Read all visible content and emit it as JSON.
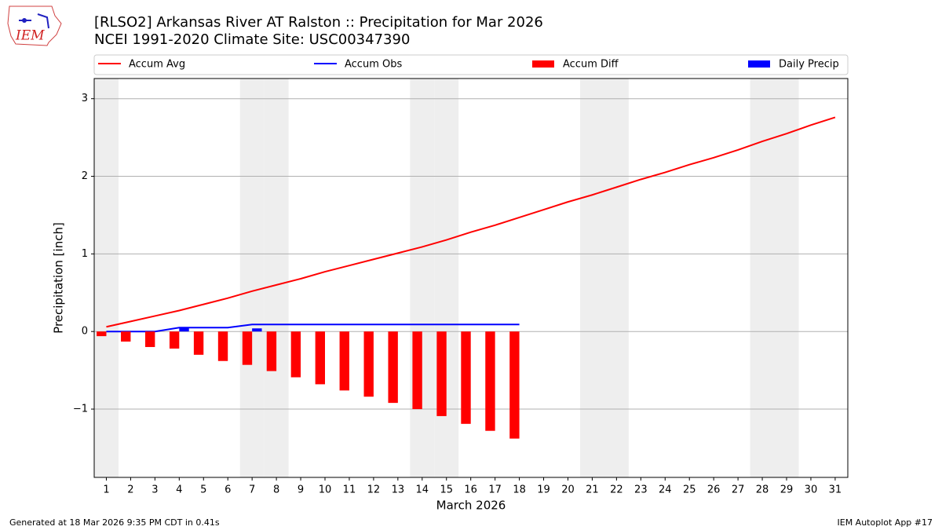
{
  "chart_data": {
    "type": "combo",
    "title": "[RLSO2] Arkansas River  AT Ralston :: Precipitation for Mar 2026",
    "subtitle": "NCEI 1991-2020 Climate Site: USC00347390",
    "logo_text": "IEM",
    "xlabel": "March 2026",
    "ylabel": "Precipitation [inch]",
    "footer_left": "Generated at 18 Mar 2026 9:35 PM CDT in 0.41s",
    "footer_right": "IEM Autoplot App #17",
    "x": [
      1,
      2,
      3,
      4,
      5,
      6,
      7,
      8,
      9,
      10,
      11,
      12,
      13,
      14,
      15,
      16,
      17,
      18,
      19,
      20,
      21,
      22,
      23,
      24,
      25,
      26,
      27,
      28,
      29,
      30,
      31
    ],
    "xlim": [
      0.5,
      31.52
    ],
    "xticks": [
      1,
      2,
      3,
      4,
      5,
      6,
      7,
      8,
      9,
      10,
      11,
      12,
      13,
      14,
      15,
      16,
      17,
      18,
      19,
      20,
      21,
      22,
      23,
      24,
      25,
      26,
      27,
      28,
      29,
      30,
      31
    ],
    "ylim": [
      -1.88,
      3.26
    ],
    "yticks": [
      {
        "value": -1,
        "label": "−1"
      },
      0,
      1,
      2,
      3
    ],
    "grid": true,
    "shaded_days": [
      1,
      7,
      8,
      14,
      15,
      21,
      22,
      28,
      29
    ],
    "series": [
      {
        "name": "Accum Avg",
        "type": "line",
        "color": "#ff0000",
        "values": [
          0.06,
          0.13,
          0.2,
          0.27,
          0.35,
          0.43,
          0.52,
          0.6,
          0.68,
          0.77,
          0.85,
          0.93,
          1.01,
          1.09,
          1.18,
          1.28,
          1.37,
          1.47,
          1.57,
          1.67,
          1.76,
          1.86,
          1.96,
          2.05,
          2.15,
          2.24,
          2.34,
          2.45,
          2.55,
          2.66,
          2.76
        ]
      },
      {
        "name": "Accum Obs",
        "type": "line",
        "color": "#0000ff",
        "values": [
          0,
          0,
          0,
          0.05,
          0.05,
          0.05,
          0.09,
          0.09,
          0.09,
          0.09,
          0.09,
          0.09,
          0.09,
          0.09,
          0.09,
          0.09,
          0.09,
          0.09,
          null,
          null,
          null,
          null,
          null,
          null,
          null,
          null,
          null,
          null,
          null,
          null,
          null
        ]
      },
      {
        "name": "Accum Diff",
        "type": "bar",
        "color": "#ff0000",
        "values": [
          -0.06,
          -0.13,
          -0.2,
          -0.22,
          -0.3,
          -0.38,
          -0.43,
          -0.51,
          -0.59,
          -0.68,
          -0.76,
          -0.84,
          -0.92,
          -1.0,
          -1.09,
          -1.19,
          -1.28,
          -1.38,
          null,
          null,
          null,
          null,
          null,
          null,
          null,
          null,
          null,
          null,
          null,
          null,
          null
        ]
      },
      {
        "name": "Daily Precip",
        "type": "bar",
        "color": "#0000ff",
        "values": [
          0,
          0,
          0,
          0.05,
          0,
          0,
          0.04,
          0,
          0,
          0,
          0,
          0,
          0,
          0,
          0,
          0,
          0,
          0,
          null,
          null,
          null,
          null,
          null,
          null,
          null,
          null,
          null,
          null,
          null,
          null,
          null
        ]
      }
    ]
  }
}
